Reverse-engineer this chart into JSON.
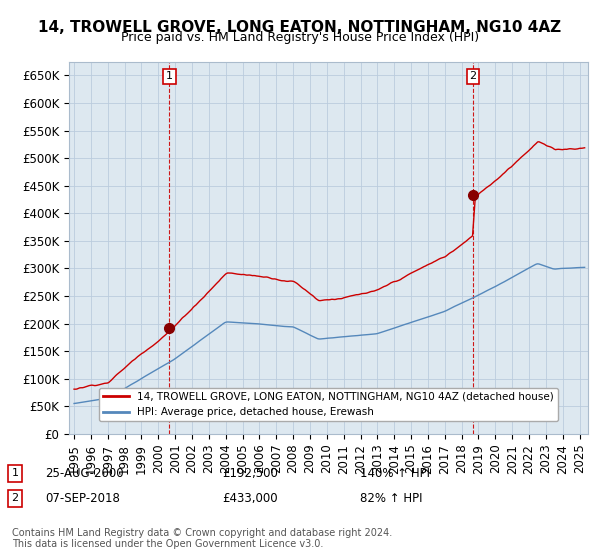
{
  "title": "14, TROWELL GROVE, LONG EATON, NOTTINGHAM, NG10 4AZ",
  "subtitle": "Price paid vs. HM Land Registry's House Price Index (HPI)",
  "ylim": [
    0,
    675000
  ],
  "yticks": [
    0,
    50000,
    100000,
    150000,
    200000,
    250000,
    300000,
    350000,
    400000,
    450000,
    500000,
    550000,
    600000,
    650000
  ],
  "ytick_labels": [
    "£0",
    "£50K",
    "£100K",
    "£150K",
    "£200K",
    "£250K",
    "£300K",
    "£350K",
    "£400K",
    "£450K",
    "£500K",
    "£550K",
    "£600K",
    "£650K"
  ],
  "sale1_date": 2000.65,
  "sale1_price": 192500,
  "sale1_label": "1",
  "sale1_annotation": "25-AUG-2000",
  "sale1_amount": "£192,500",
  "sale1_hpi": "140% ↑ HPI",
  "sale2_date": 2018.68,
  "sale2_price": 433000,
  "sale2_label": "2",
  "sale2_annotation": "07-SEP-2018",
  "sale2_amount": "£433,000",
  "sale2_hpi": "82% ↑ HPI",
  "line1_color": "#cc0000",
  "line2_color": "#5588bb",
  "marker_color": "#880000",
  "vline_color": "#cc0000",
  "bg_fill_color": "#dde8f0",
  "legend1_label": "14, TROWELL GROVE, LONG EATON, NOTTINGHAM, NG10 4AZ (detached house)",
  "legend2_label": "HPI: Average price, detached house, Erewash",
  "footer": "Contains HM Land Registry data © Crown copyright and database right 2024.\nThis data is licensed under the Open Government Licence v3.0.",
  "background_color": "#ffffff",
  "grid_color": "#bbccdd",
  "title_fontsize": 11,
  "subtitle_fontsize": 9,
  "tick_fontsize": 8.5
}
